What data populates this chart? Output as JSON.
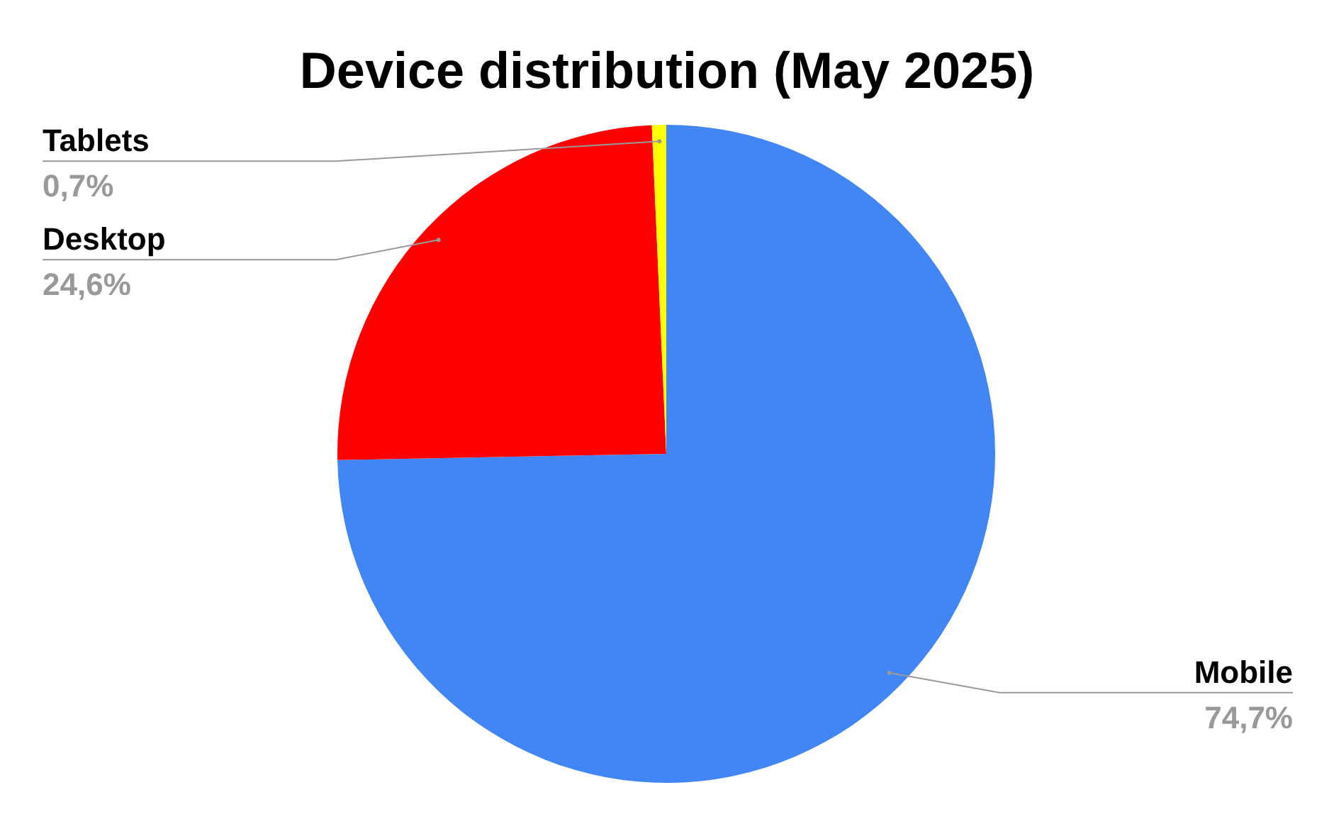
{
  "chart_data": {
    "type": "pie",
    "title": "Device distribution (May 2025)",
    "categories": [
      "Mobile",
      "Desktop",
      "Tablets"
    ],
    "values": [
      74.7,
      24.6,
      0.7
    ],
    "colors": [
      "#4285f4",
      "#ff0000",
      "#ffff00"
    ],
    "value_labels": [
      "74,7%",
      "24,6%",
      "0,7%"
    ]
  }
}
